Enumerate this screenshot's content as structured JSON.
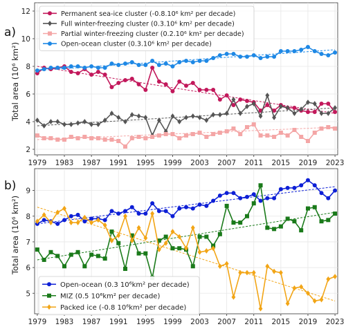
{
  "chart_data": [
    {
      "type": "line",
      "panel_label": "a)",
      "ylabel": "Total area (10⁶ km²)",
      "xlabel": "",
      "xlim": [
        1978.6,
        2023.4
      ],
      "ylim": [
        1.6,
        12.6
      ],
      "yticks": [
        2,
        4,
        6,
        8,
        10,
        12
      ],
      "xticks": [
        1979,
        1983,
        1987,
        1991,
        1995,
        1999,
        2003,
        2007,
        2011,
        2015,
        2019,
        2023
      ],
      "grid": true,
      "legend_position": "top-left",
      "x": [
        1979,
        1980,
        1981,
        1982,
        1983,
        1984,
        1985,
        1986,
        1987,
        1988,
        1989,
        1990,
        1991,
        1992,
        1993,
        1994,
        1995,
        1996,
        1997,
        1998,
        1999,
        2000,
        2001,
        2002,
        2003,
        2004,
        2005,
        2006,
        2007,
        2008,
        2009,
        2010,
        2011,
        2012,
        2013,
        2014,
        2015,
        2016,
        2017,
        2018,
        2019,
        2020,
        2021,
        2022,
        2023
      ],
      "series": [
        {
          "name": "Permanent sea-ice cluster  (-0.8.10⁶ km² per decade)",
          "color": "#c2185b",
          "marker": "circle",
          "values": [
            7.5,
            7.9,
            7.8,
            7.9,
            8.0,
            7.6,
            7.5,
            7.8,
            7.4,
            7.6,
            7.4,
            6.5,
            6.8,
            7.0,
            7.1,
            6.7,
            6.3,
            7.9,
            6.9,
            6.7,
            6.2,
            6.9,
            6.6,
            6.8,
            6.3,
            6.3,
            6.3,
            5.6,
            5.9,
            5.2,
            5.6,
            5.5,
            5.4,
            4.8,
            5.2,
            4.8,
            5.2,
            5.0,
            5.0,
            4.8,
            4.7,
            4.7,
            5.3,
            5.3,
            4.7
          ],
          "trend": [
            8.0,
            4.6
          ]
        },
        {
          "name": "Full winter-freezing cluster  (0.3.10⁶ km² per decade)",
          "color": "#555555",
          "marker": "diamond",
          "values": [
            4.1,
            3.7,
            4.0,
            4.0,
            3.8,
            3.8,
            3.9,
            4.0,
            3.8,
            3.8,
            4.1,
            4.6,
            4.3,
            4.0,
            4.5,
            4.4,
            4.3,
            3.0,
            4.1,
            3.3,
            4.4,
            4.0,
            4.3,
            4.4,
            4.3,
            4.1,
            4.5,
            4.5,
            4.6,
            5.6,
            4.6,
            5.1,
            5.3,
            4.4,
            5.9,
            4.3,
            5.1,
            5.0,
            4.6,
            4.9,
            5.4,
            5.3,
            4.6,
            4.6,
            5.0
          ],
          "trend": [
            3.7,
            5.0
          ]
        },
        {
          "name": "Partial winter-freezing cluster  (0.2.10⁶ km² per decade)",
          "color": "#f4a6a6",
          "marker": "square",
          "values": [
            3.0,
            2.8,
            2.8,
            2.7,
            2.7,
            2.9,
            2.8,
            2.9,
            2.8,
            2.8,
            2.7,
            2.7,
            2.6,
            2.2,
            2.8,
            2.9,
            2.8,
            2.9,
            3.0,
            3.1,
            3.1,
            2.8,
            3.0,
            3.1,
            3.2,
            2.9,
            3.1,
            3.2,
            3.3,
            3.5,
            3.1,
            3.6,
            3.8,
            3.0,
            3.0,
            2.9,
            3.2,
            3.0,
            3.4,
            2.9,
            2.6,
            3.2,
            3.5,
            3.6,
            3.5
          ],
          "trend": [
            2.7,
            3.6
          ]
        },
        {
          "name": "Open-ocean cluster  (0.3.10⁶ km² per decade)",
          "color": "#1e88e5",
          "marker": "circle",
          "values": [
            7.7,
            7.8,
            7.9,
            7.9,
            7.9,
            8.0,
            8.0,
            7.9,
            8.0,
            7.9,
            7.9,
            8.2,
            8.1,
            8.2,
            8.3,
            8.1,
            8.1,
            8.4,
            8.1,
            8.2,
            8.0,
            8.3,
            8.4,
            8.3,
            8.4,
            8.4,
            8.6,
            8.8,
            8.9,
            8.9,
            8.7,
            8.7,
            8.8,
            8.6,
            8.7,
            8.7,
            9.1,
            9.1,
            9.1,
            9.2,
            9.4,
            9.1,
            8.9,
            8.8,
            9.0
          ],
          "trend": [
            7.7,
            9.2
          ]
        }
      ]
    },
    {
      "type": "line",
      "panel_label": "b)",
      "ylabel": "Total area (10⁶ km²)",
      "xlabel": "",
      "xlim": [
        1978.6,
        2023.4
      ],
      "ylim": [
        4.2,
        9.85
      ],
      "yticks": [
        5,
        6,
        7,
        8,
        9
      ],
      "xticks": [
        1979,
        1983,
        1987,
        1991,
        1995,
        1999,
        2003,
        2007,
        2011,
        2015,
        2019,
        2023
      ],
      "grid": true,
      "legend_position": "bottom-left",
      "x": [
        1979,
        1980,
        1981,
        1982,
        1983,
        1984,
        1985,
        1986,
        1987,
        1988,
        1989,
        1990,
        1991,
        1992,
        1993,
        1994,
        1995,
        1996,
        1997,
        1998,
        1999,
        2000,
        2001,
        2002,
        2003,
        2004,
        2005,
        2006,
        2007,
        2008,
        2009,
        2010,
        2011,
        2012,
        2013,
        2014,
        2015,
        2016,
        2017,
        2018,
        2019,
        2020,
        2021,
        2022,
        2023
      ],
      "series": [
        {
          "name": "Open-ocean (0.3 10⁶km² per decade)",
          "color": "#0d1fd6",
          "marker": "circle",
          "values": [
            7.7,
            7.85,
            7.8,
            7.7,
            7.85,
            8.0,
            8.05,
            7.8,
            7.9,
            7.9,
            7.85,
            8.2,
            8.1,
            8.2,
            8.35,
            8.1,
            8.1,
            8.5,
            8.2,
            8.2,
            8.0,
            8.3,
            8.35,
            8.3,
            8.45,
            8.4,
            8.6,
            8.8,
            8.9,
            8.9,
            8.7,
            8.75,
            8.85,
            8.6,
            8.7,
            8.7,
            9.05,
            9.1,
            9.1,
            9.2,
            9.4,
            9.2,
            8.9,
            8.7,
            9.0
          ],
          "trend": [
            7.7,
            9.15
          ]
        },
        {
          "name": "MIZ (0.5 10⁶km² per decade)",
          "color": "#1a7a1a",
          "marker": "square",
          "values": [
            6.7,
            6.3,
            6.6,
            6.45,
            6.05,
            6.5,
            6.6,
            6.05,
            6.5,
            6.45,
            6.35,
            7.4,
            6.95,
            5.95,
            7.25,
            6.55,
            6.55,
            5.6,
            7.05,
            7.2,
            6.75,
            6.75,
            6.7,
            6.05,
            7.2,
            7.2,
            6.85,
            7.3,
            8.4,
            7.75,
            7.75,
            8.0,
            8.5,
            9.2,
            7.55,
            7.5,
            7.6,
            7.9,
            7.8,
            7.45,
            8.3,
            8.35,
            7.8,
            7.85,
            8.1
          ],
          "trend": [
            6.3,
            8.15
          ]
        },
        {
          "name": "Packed ice (-0.8 10⁶km² per decade)",
          "color": "#f2a516",
          "marker": "diamond",
          "values": [
            7.8,
            8.05,
            7.75,
            8.15,
            8.3,
            7.75,
            7.75,
            7.95,
            7.75,
            7.85,
            7.65,
            7.05,
            7.25,
            8.0,
            7.05,
            7.55,
            7.15,
            8.1,
            6.7,
            6.95,
            7.4,
            7.2,
            6.75,
            7.55,
            6.6,
            6.65,
            6.75,
            6.05,
            6.15,
            4.85,
            5.8,
            5.8,
            5.8,
            4.4,
            6.05,
            5.85,
            5.8,
            4.6,
            5.2,
            5.25,
            5.0,
            4.7,
            4.75,
            5.55,
            5.65
          ],
          "trend": [
            8.35,
            4.7
          ]
        }
      ]
    }
  ]
}
